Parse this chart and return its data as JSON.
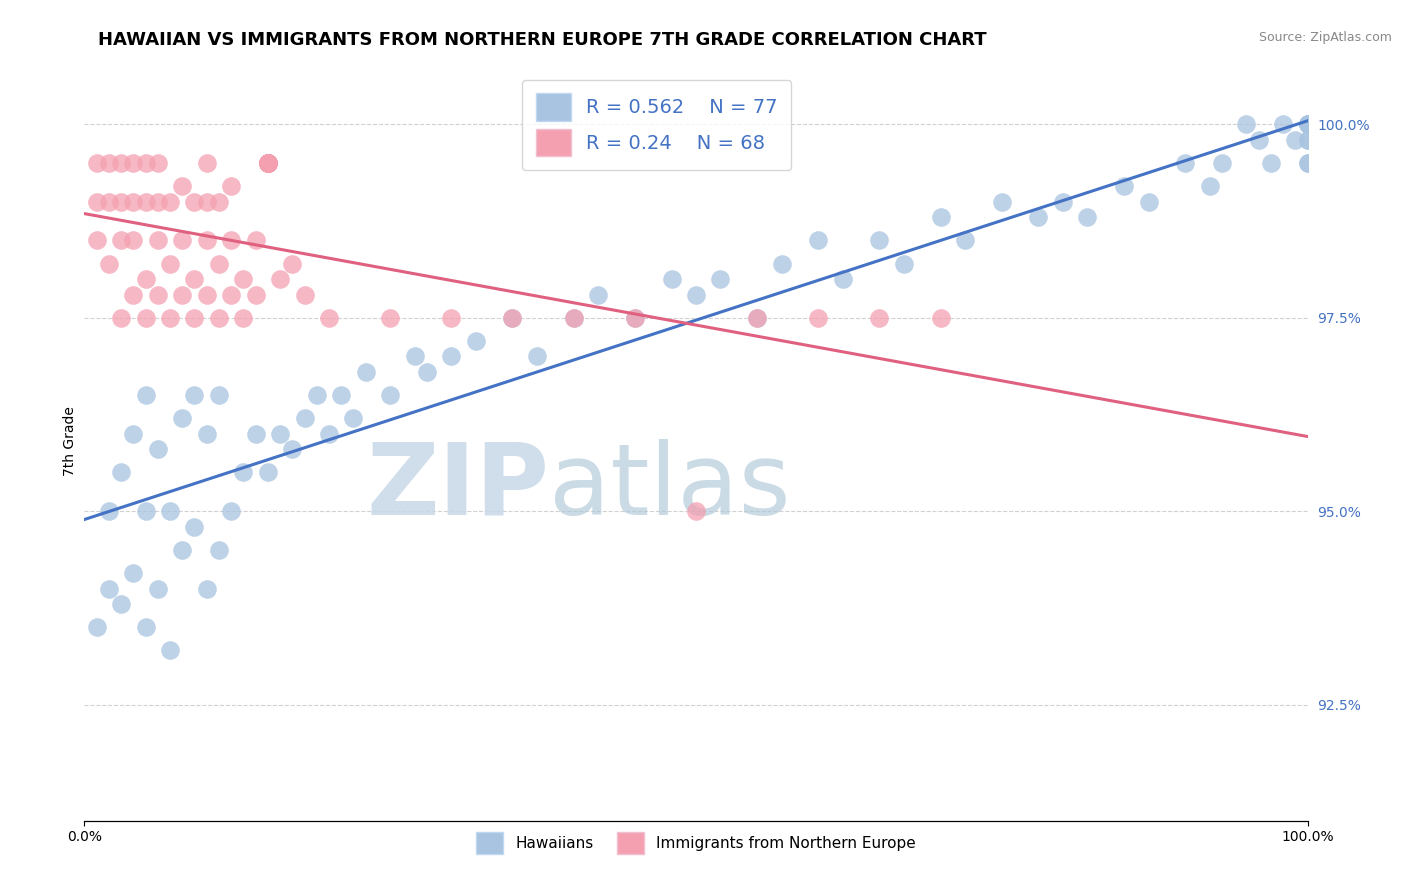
{
  "title": "HAWAIIAN VS IMMIGRANTS FROM NORTHERN EUROPE 7TH GRADE CORRELATION CHART",
  "source": "Source: ZipAtlas.com",
  "ylabel": "7th Grade",
  "xmin": 0.0,
  "xmax": 100.0,
  "ymin": 91.0,
  "ymax": 100.8,
  "right_yticks": [
    92.5,
    95.0,
    97.5,
    100.0
  ],
  "right_yticklabels": [
    "92.5%",
    "95.0%",
    "97.5%",
    "100.0%"
  ],
  "r_blue": 0.562,
  "n_blue": 77,
  "r_pink": 0.24,
  "n_pink": 68,
  "blue_color": "#a8c4e0",
  "pink_color": "#f4a0b0",
  "blue_line_color": "#4472c4",
  "pink_line_color": "#e06080",
  "legend_label_blue": "Hawaiians",
  "legend_label_pink": "Immigrants from Northern Europe",
  "watermark_zip": "ZIP",
  "watermark_atlas": "atlas",
  "watermark_color_zip": "#c8d8e8",
  "watermark_color_atlas": "#b0c8d8",
  "title_fontsize": 13,
  "label_fontsize": 10,
  "background_color": "#ffffff",
  "blue_x": [
    1,
    2,
    2,
    3,
    3,
    4,
    4,
    5,
    5,
    5,
    6,
    6,
    7,
    7,
    8,
    8,
    9,
    9,
    10,
    10,
    11,
    11,
    12,
    13,
    14,
    15,
    16,
    17,
    18,
    19,
    20,
    21,
    22,
    23,
    25,
    27,
    28,
    30,
    32,
    35,
    37,
    40,
    42,
    45,
    48,
    50,
    52,
    55,
    57,
    60,
    62,
    65,
    67,
    70,
    72,
    75,
    78,
    80,
    82,
    85,
    87,
    90,
    92,
    93,
    95,
    96,
    97,
    98,
    99,
    100,
    100,
    100,
    100,
    100,
    100,
    100,
    100
  ],
  "blue_y": [
    93.5,
    94.0,
    95.0,
    93.8,
    95.5,
    94.2,
    96.0,
    93.5,
    95.0,
    96.5,
    94.0,
    95.8,
    93.2,
    95.0,
    94.5,
    96.2,
    94.8,
    96.5,
    94.0,
    96.0,
    94.5,
    96.5,
    95.0,
    95.5,
    96.0,
    95.5,
    96.0,
    95.8,
    96.2,
    96.5,
    96.0,
    96.5,
    96.2,
    96.8,
    96.5,
    97.0,
    96.8,
    97.0,
    97.2,
    97.5,
    97.0,
    97.5,
    97.8,
    97.5,
    98.0,
    97.8,
    98.0,
    97.5,
    98.2,
    98.5,
    98.0,
    98.5,
    98.2,
    98.8,
    98.5,
    99.0,
    98.8,
    99.0,
    98.8,
    99.2,
    99.0,
    99.5,
    99.2,
    99.5,
    100.0,
    99.8,
    99.5,
    100.0,
    99.8,
    100.0,
    99.5,
    100.0,
    99.8,
    100.0,
    99.5,
    99.8,
    100.0
  ],
  "pink_x": [
    1,
    1,
    1,
    2,
    2,
    2,
    3,
    3,
    3,
    3,
    4,
    4,
    4,
    4,
    5,
    5,
    5,
    5,
    6,
    6,
    6,
    6,
    7,
    7,
    7,
    8,
    8,
    8,
    9,
    9,
    9,
    10,
    10,
    10,
    10,
    11,
    11,
    11,
    12,
    12,
    12,
    13,
    13,
    14,
    14,
    15,
    15,
    15,
    15,
    15,
    15,
    15,
    15,
    15,
    16,
    17,
    18,
    20,
    25,
    30,
    35,
    40,
    45,
    50,
    55,
    60,
    65,
    70
  ],
  "pink_y": [
    98.5,
    99.0,
    99.5,
    98.2,
    99.0,
    99.5,
    97.5,
    98.5,
    99.0,
    99.5,
    97.8,
    98.5,
    99.0,
    99.5,
    97.5,
    98.0,
    99.0,
    99.5,
    97.8,
    98.5,
    99.0,
    99.5,
    97.5,
    98.2,
    99.0,
    97.8,
    98.5,
    99.2,
    97.5,
    98.0,
    99.0,
    97.8,
    98.5,
    99.0,
    99.5,
    97.5,
    98.2,
    99.0,
    97.8,
    98.5,
    99.2,
    97.5,
    98.0,
    97.8,
    98.5,
    99.5,
    99.5,
    99.5,
    99.5,
    99.5,
    99.5,
    99.5,
    99.5,
    99.5,
    98.0,
    98.2,
    97.8,
    97.5,
    97.5,
    97.5,
    97.5,
    97.5,
    97.5,
    95.0,
    97.5,
    97.5,
    97.5,
    97.5
  ]
}
